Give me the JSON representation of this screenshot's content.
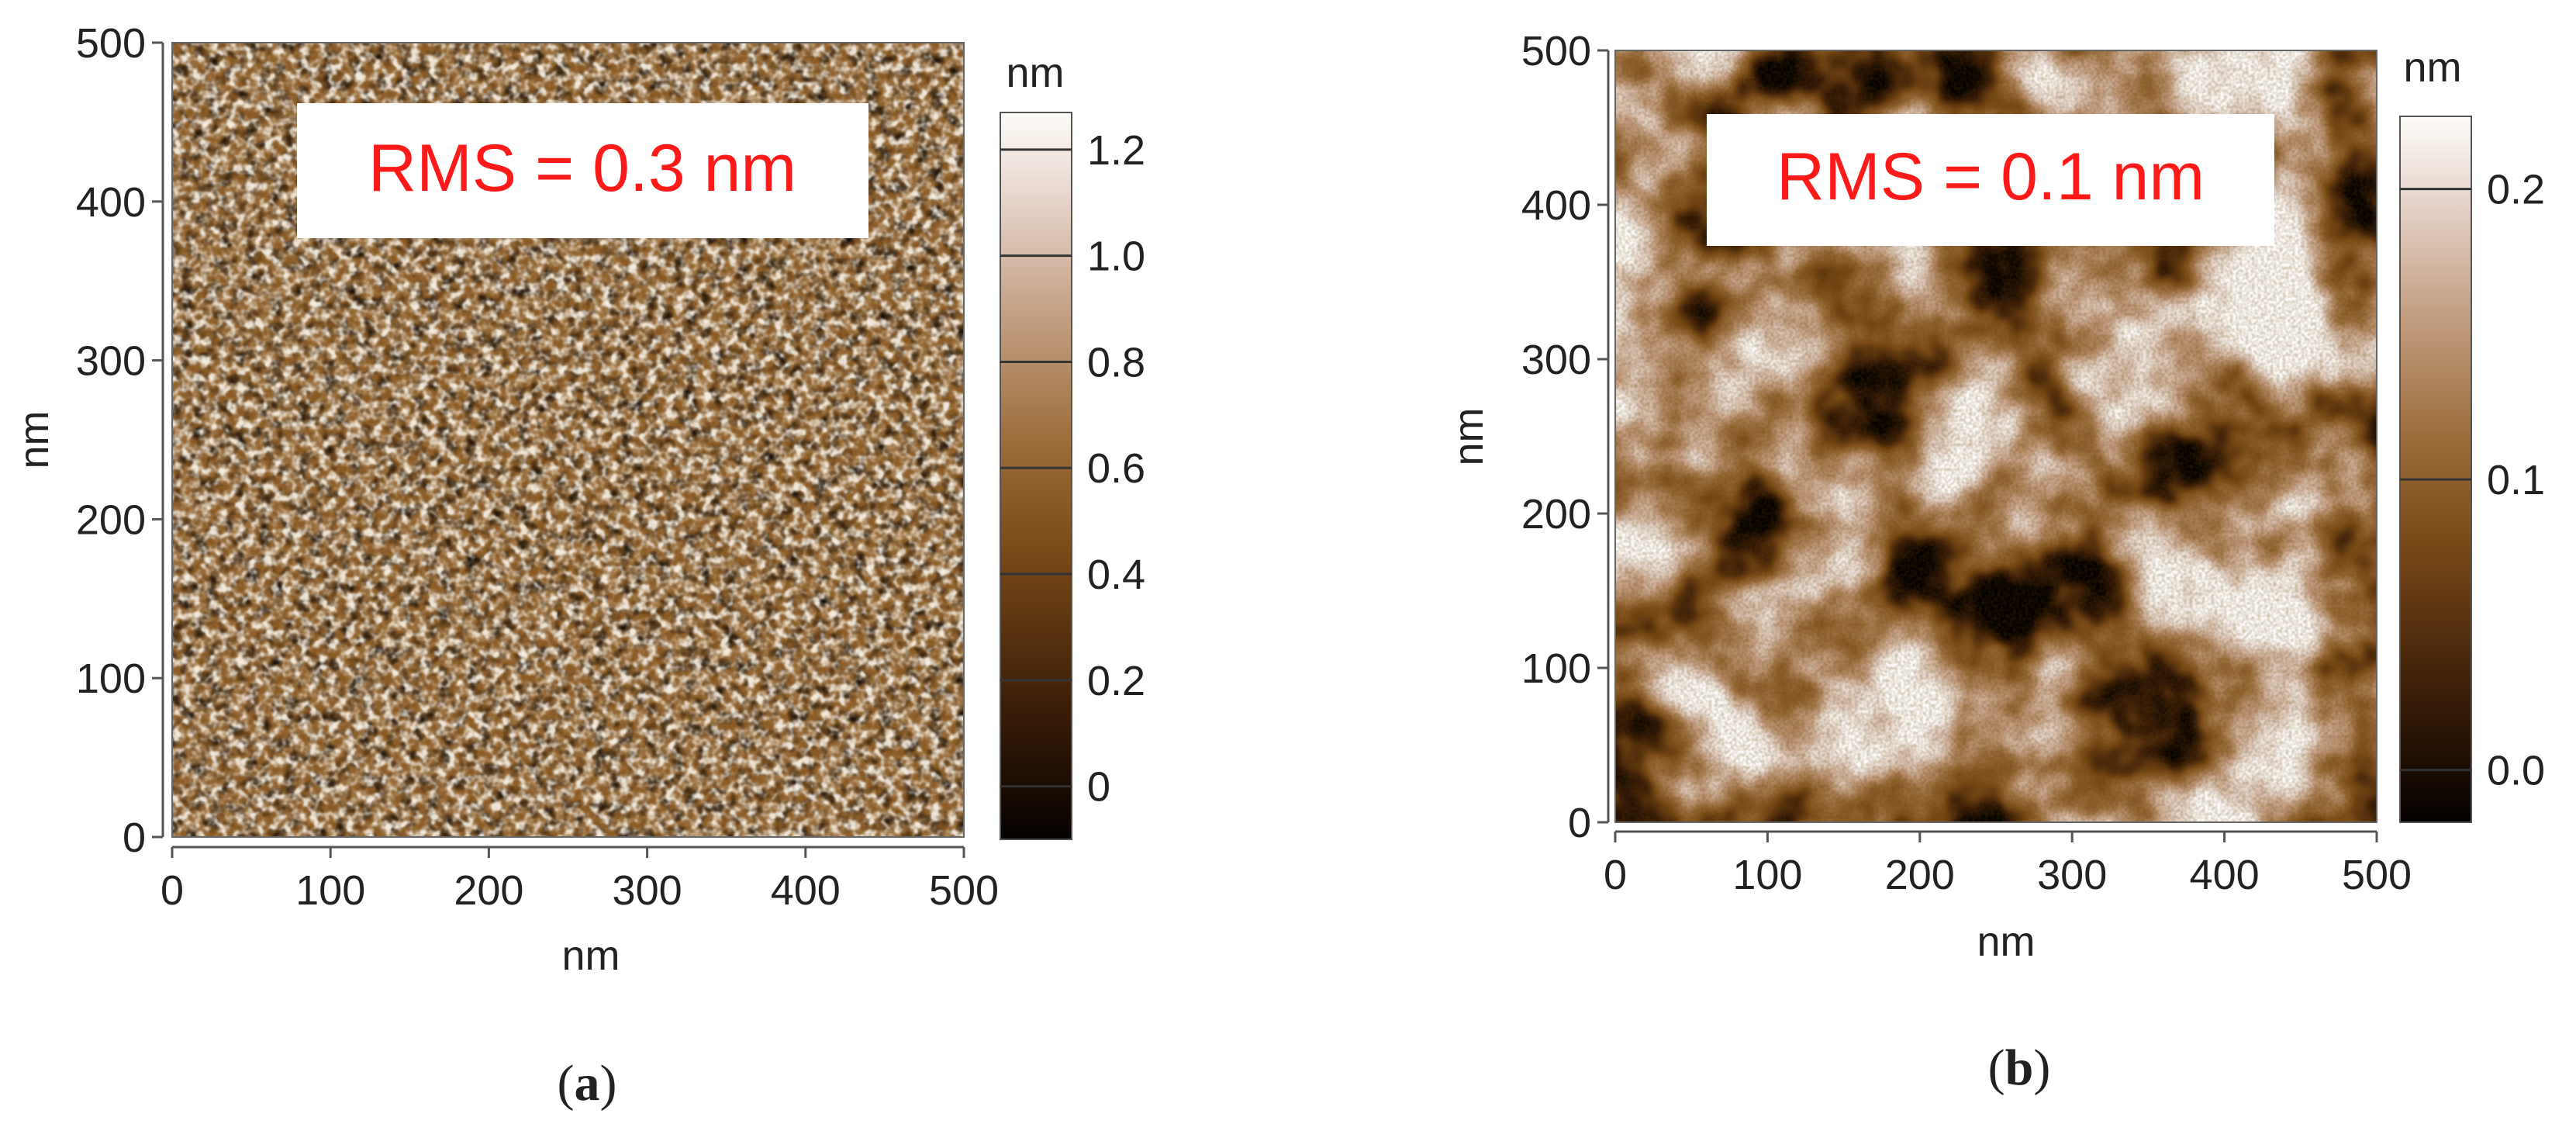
{
  "chart_data": [
    {
      "type": "heatmap",
      "panel_label": "a",
      "annotation": "RMS = 0.3 nm",
      "xlabel": "nm",
      "ylabel": "nm",
      "xlim": [
        0,
        500
      ],
      "ylim": [
        0,
        500
      ],
      "xticks": [
        "0",
        "100",
        "200",
        "300",
        "400",
        "500"
      ],
      "yticks": [
        "0",
        "100",
        "200",
        "300",
        "400",
        "500"
      ],
      "colorbar": {
        "unit": "nm",
        "range": [
          -0.1,
          1.27
        ],
        "ticks": [
          {
            "value": 0,
            "label": "0"
          },
          {
            "value": 0.2,
            "label": "0.2"
          },
          {
            "value": 0.4,
            "label": "0.4"
          },
          {
            "value": 0.6,
            "label": "0.6"
          },
          {
            "value": 0.8,
            "label": "0.8"
          },
          {
            "value": 1.0,
            "label": "1.0"
          },
          {
            "value": 1.2,
            "label": "1.2"
          }
        ]
      },
      "colors": {
        "low": "#050100",
        "mid": "#8a5a24",
        "high": "#f7f3ec",
        "annotation": "#ff1a1a"
      },
      "texture": "fine-grain"
    },
    {
      "type": "heatmap",
      "panel_label": "b",
      "annotation": "RMS = 0.1 nm",
      "xlabel": "nm",
      "ylabel": "nm",
      "xlim": [
        0,
        500
      ],
      "ylim": [
        0,
        500
      ],
      "xticks": [
        "0",
        "100",
        "200",
        "300",
        "400",
        "500"
      ],
      "yticks": [
        "0",
        "100",
        "200",
        "300",
        "400",
        "500"
      ],
      "colorbar": {
        "unit": "nm",
        "range": [
          -0.018,
          0.225
        ],
        "ticks": [
          {
            "value": 0.0,
            "label": "0.0"
          },
          {
            "value": 0.1,
            "label": "0.1"
          },
          {
            "value": 0.2,
            "label": "0.2"
          }
        ]
      },
      "colors": {
        "low": "#050100",
        "mid": "#8a5a24",
        "high": "#f7f3ec",
        "annotation": "#ff1a1a"
      },
      "texture": "smooth-domains"
    }
  ]
}
